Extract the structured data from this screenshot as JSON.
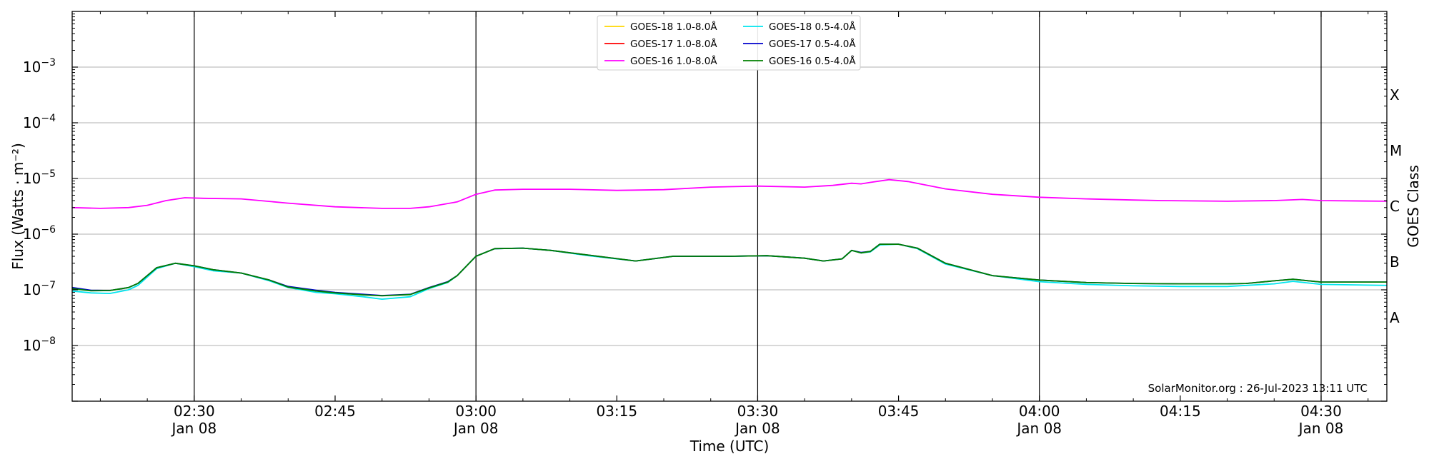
{
  "chart_data": {
    "type": "line",
    "xlabel": "Time (UTC)",
    "ylabel": "Flux (Watts · m⁻²)",
    "y2label": "GOES Class",
    "yscale": "log",
    "xlim": [
      "2023-01-08T02:17:00",
      "2023-01-08T04:37:00"
    ],
    "ylim": [
      1e-09,
      0.01
    ],
    "grid": "horizontal at y decades, vertical at x major ticks",
    "legend_position": "top-center",
    "credit": "SolarMonitor.org : 26-Jul-2023 13:11 UTC",
    "x_ticks": [
      {
        "t": "02:30",
        "label": "02:30",
        "date": "Jan 08"
      },
      {
        "t": "02:45",
        "label": "02:45",
        "date": ""
      },
      {
        "t": "03:00",
        "label": "03:00",
        "date": "Jan 08"
      },
      {
        "t": "03:15",
        "label": "03:15",
        "date": ""
      },
      {
        "t": "03:30",
        "label": "03:30",
        "date": "Jan 08"
      },
      {
        "t": "03:45",
        "label": "03:45",
        "date": ""
      },
      {
        "t": "04:00",
        "label": "04:00",
        "date": "Jan 08"
      },
      {
        "t": "04:15",
        "label": "04:15",
        "date": ""
      },
      {
        "t": "04:30",
        "label": "04:30",
        "date": "Jan 08"
      }
    ],
    "y_ticks": [
      {
        "exp": -8,
        "base": "10",
        "sup": "−8"
      },
      {
        "exp": -7,
        "base": "10",
        "sup": "−7"
      },
      {
        "exp": -6,
        "base": "10",
        "sup": "−6"
      },
      {
        "exp": -5,
        "base": "10",
        "sup": "−5"
      },
      {
        "exp": -4,
        "base": "10",
        "sup": "−4"
      },
      {
        "exp": -3,
        "base": "10",
        "sup": "−3"
      }
    ],
    "goes_classes": [
      {
        "label": "A",
        "exp": -7.5
      },
      {
        "label": "B",
        "exp": -6.5
      },
      {
        "label": "C",
        "exp": -5.5
      },
      {
        "label": "M",
        "exp": -4.5
      },
      {
        "label": "X",
        "exp": -3.5
      }
    ],
    "legend": [
      {
        "name": "GOES-18 1.0-8.0Å",
        "color": "#ffd700"
      },
      {
        "name": "GOES-17 1.0-8.0Å",
        "color": "#ff0000"
      },
      {
        "name": "GOES-16 1.0-8.0Å",
        "color": "#ff00ff"
      },
      {
        "name": "GOES-18 0.5-4.0Å",
        "color": "#00e5ee"
      },
      {
        "name": "GOES-17 0.5-4.0Å",
        "color": "#0000cd"
      },
      {
        "name": "GOES-16 0.5-4.0Å",
        "color": "#008000"
      }
    ],
    "series": [
      {
        "name": "GOES-16 1.0-8.0Å",
        "color": "#ff00ff",
        "t": [
          "02:17",
          "02:20",
          "02:23",
          "02:25",
          "02:27",
          "02:29",
          "02:31",
          "02:35",
          "02:40",
          "02:45",
          "02:50",
          "02:53",
          "02:55",
          "02:58",
          "03:00",
          "03:02",
          "03:05",
          "03:10",
          "03:15",
          "03:20",
          "03:25",
          "03:30",
          "03:35",
          "03:38",
          "03:40",
          "03:41",
          "03:42",
          "03:44",
          "03:46",
          "03:50",
          "03:55",
          "04:00",
          "04:05",
          "04:10",
          "04:13",
          "04:20",
          "04:25",
          "04:28",
          "04:30",
          "04:37"
        ],
        "v": [
          3e-06,
          2.9e-06,
          3e-06,
          3.3e-06,
          4e-06,
          4.5e-06,
          4.4e-06,
          4.3e-06,
          3.6e-06,
          3.1e-06,
          2.9e-06,
          2.9e-06,
          3.1e-06,
          3.8e-06,
          5.2e-06,
          6.2e-06,
          6.4e-06,
          6.4e-06,
          6.1e-06,
          6.3e-06,
          7e-06,
          7.3e-06,
          7e-06,
          7.5e-06,
          8.2e-06,
          8e-06,
          8.5e-06,
          9.5e-06,
          8.8e-06,
          6.5e-06,
          5.2e-06,
          4.6e-06,
          4.3e-06,
          4.1e-06,
          4e-06,
          3.9e-06,
          4e-06,
          4.2e-06,
          4e-06,
          3.9e-06
        ]
      },
      {
        "name": "GOES-18 0.5-4.0Å",
        "color": "#00e5ee",
        "t": [
          "02:17",
          "02:19",
          "02:21",
          "02:23",
          "02:24",
          "02:26",
          "02:28",
          "02:30",
          "02:32",
          "02:35",
          "02:38",
          "02:40",
          "02:43",
          "02:45",
          "02:48",
          "02:50",
          "02:53",
          "02:55",
          "02:57",
          "02:58",
          "03:00",
          "03:02",
          "03:05",
          "03:08",
          "03:12",
          "03:17",
          "03:21",
          "03:23",
          "03:27",
          "03:31",
          "03:35",
          "03:37",
          "03:39",
          "03:40",
          "03:41",
          "03:42",
          "03:43",
          "03:45",
          "03:47",
          "03:50",
          "03:55",
          "04:00",
          "04:05",
          "04:10",
          "04:15",
          "04:20",
          "04:22",
          "04:25",
          "04:27",
          "04:30",
          "04:37"
        ],
        "v": [
          9.5e-08,
          8.8e-08,
          8.6e-08,
          1e-07,
          1.2e-07,
          2.4e-07,
          3e-07,
          2.6e-07,
          2.2e-07,
          2e-07,
          1.45e-07,
          1.1e-07,
          9e-08,
          8.5e-08,
          7.5e-08,
          6.8e-08,
          7.5e-08,
          1.05e-07,
          1.35e-07,
          1.8e-07,
          4e-07,
          5.5e-07,
          5.6e-07,
          5.1e-07,
          4.1e-07,
          3.3e-07,
          4e-07,
          4e-07,
          4e-07,
          4.1e-07,
          3.7e-07,
          3.3e-07,
          3.6e-07,
          5.1e-07,
          4.6e-07,
          4.8e-07,
          6.4e-07,
          6.6e-07,
          5.5e-07,
          2.9e-07,
          1.8e-07,
          1.4e-07,
          1.25e-07,
          1.18e-07,
          1.15e-07,
          1.15e-07,
          1.2e-07,
          1.28e-07,
          1.42e-07,
          1.25e-07,
          1.2e-07
        ]
      },
      {
        "name": "GOES-17 0.5-4.0Å",
        "color": "#0000cd",
        "t": [
          "02:17",
          "02:19",
          "02:21",
          "02:23",
          "02:24",
          "02:26",
          "02:28",
          "02:30",
          "02:32",
          "02:35",
          "02:38",
          "02:40",
          "02:43",
          "02:45",
          "02:48",
          "02:50",
          "02:53",
          "02:55",
          "02:57",
          "02:58",
          "03:00",
          "03:02",
          "03:05",
          "03:08",
          "03:12",
          "03:17",
          "03:21",
          "03:23",
          "03:27",
          "03:31",
          "03:35",
          "03:37",
          "03:39",
          "03:40",
          "03:41",
          "03:42",
          "03:43",
          "03:45",
          "03:47",
          "03:50",
          "03:55",
          "04:00",
          "04:05",
          "04:10",
          "04:15",
          "04:20",
          "04:22",
          "04:25",
          "04:27",
          "04:30",
          "04:37"
        ],
        "v": [
          1.1e-07,
          9.8e-08,
          9.7e-08,
          1.1e-07,
          1.3e-07,
          2.5e-07,
          3e-07,
          2.7e-07,
          2.3e-07,
          2e-07,
          1.5e-07,
          1.15e-07,
          9.8e-08,
          9e-08,
          8.3e-08,
          7.9e-08,
          8.3e-08,
          1.1e-07,
          1.4e-07,
          1.8e-07,
          4e-07,
          5.5e-07,
          5.6e-07,
          5.1e-07,
          4.2e-07,
          3.3e-07,
          4e-07,
          4e-07,
          4e-07,
          4.1e-07,
          3.7e-07,
          3.3e-07,
          3.6e-07,
          5.1e-07,
          4.7e-07,
          4.9e-07,
          6.6e-07,
          6.6e-07,
          5.6e-07,
          3e-07,
          1.8e-07,
          1.5e-07,
          1.35e-07,
          1.3e-07,
          1.28e-07,
          1.28e-07,
          1.3e-07,
          1.45e-07,
          1.55e-07,
          1.38e-07,
          1.38e-07
        ]
      },
      {
        "name": "GOES-16 0.5-4.0Å",
        "color": "#008000",
        "t": [
          "02:17",
          "02:19",
          "02:21",
          "02:23",
          "02:24",
          "02:26",
          "02:28",
          "02:30",
          "02:32",
          "02:35",
          "02:38",
          "02:40",
          "02:43",
          "02:45",
          "02:48",
          "02:50",
          "02:53",
          "02:55",
          "02:57",
          "02:58",
          "03:00",
          "03:02",
          "03:05",
          "03:08",
          "03:12",
          "03:17",
          "03:21",
          "03:23",
          "03:27",
          "03:31",
          "03:35",
          "03:37",
          "03:39",
          "03:40",
          "03:41",
          "03:42",
          "03:43",
          "03:45",
          "03:47",
          "03:50",
          "03:55",
          "04:00",
          "04:05",
          "04:10",
          "04:15",
          "04:20",
          "04:22",
          "04:25",
          "04:27",
          "04:30",
          "04:37"
        ],
        "v": [
          1.05e-07,
          9.6e-08,
          9.7e-08,
          1.1e-07,
          1.3e-07,
          2.5e-07,
          3e-07,
          2.7e-07,
          2.3e-07,
          2e-07,
          1.5e-07,
          1.12e-07,
          9.5e-08,
          8.8e-08,
          8.1e-08,
          7.8e-08,
          8.2e-08,
          1.08e-07,
          1.38e-07,
          1.8e-07,
          4e-07,
          5.5e-07,
          5.6e-07,
          5.1e-07,
          4.2e-07,
          3.3e-07,
          4e-07,
          4e-07,
          4e-07,
          4.1e-07,
          3.7e-07,
          3.3e-07,
          3.6e-07,
          5.1e-07,
          4.6e-07,
          4.9e-07,
          6.6e-07,
          6.6e-07,
          5.6e-07,
          3e-07,
          1.8e-07,
          1.5e-07,
          1.35e-07,
          1.3e-07,
          1.28e-07,
          1.28e-07,
          1.3e-07,
          1.45e-07,
          1.55e-07,
          1.38e-07,
          1.38e-07
        ]
      }
    ]
  }
}
